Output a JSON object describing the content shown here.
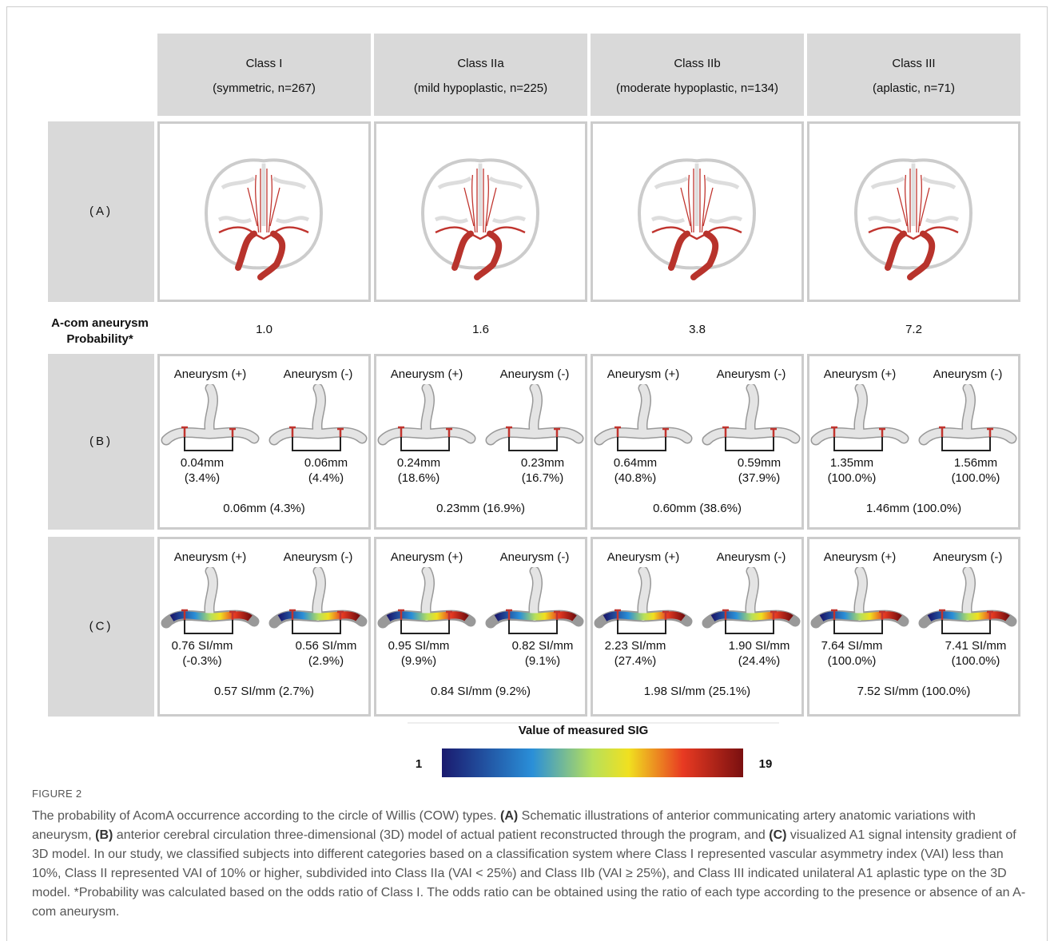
{
  "header": {
    "columns": [
      {
        "title": "Class I",
        "subtitle": "(symmetric, n=267)"
      },
      {
        "title": "Class IIa",
        "subtitle": "(mild hypoplastic, n=225)"
      },
      {
        "title": "Class IIb",
        "subtitle": "(moderate hypoplastic, n=134)"
      },
      {
        "title": "Class III",
        "subtitle": "(aplastic, n=71)"
      }
    ]
  },
  "rows": [
    {
      "label": "(A)"
    },
    {
      "label": "(B)"
    },
    {
      "label": "(C)"
    }
  ],
  "probability": {
    "label": [
      "A-com aneurysm",
      "Probability*"
    ],
    "values": [
      "1.0",
      "1.6",
      "3.8",
      "7.2"
    ]
  },
  "row_b": [
    {
      "pos_label": "Aneurysm (+)",
      "neg_label": "Aneurysm (-)",
      "pos_value": "0.04mm",
      "pos_pct": "(3.4%)",
      "neg_value": "0.06mm",
      "neg_pct": "(4.4%)",
      "summary": "0.06mm (4.3%)"
    },
    {
      "pos_label": "Aneurysm (+)",
      "neg_label": "Aneurysm (-)",
      "pos_value": "0.24mm",
      "pos_pct": "(18.6%)",
      "neg_value": "0.23mm",
      "neg_pct": "(16.7%)",
      "summary": "0.23mm (16.9%)"
    },
    {
      "pos_label": "Aneurysm (+)",
      "neg_label": "Aneurysm (-)",
      "pos_value": "0.64mm",
      "pos_pct": "(40.8%)",
      "neg_value": "0.59mm",
      "neg_pct": "(37.9%)",
      "summary": "0.60mm (38.6%)"
    },
    {
      "pos_label": "Aneurysm (+)",
      "neg_label": "Aneurysm (-)",
      "pos_value": "1.35mm",
      "pos_pct": "(100.0%)",
      "neg_value": "1.56mm",
      "neg_pct": "(100.0%)",
      "summary": "1.46mm (100.0%)"
    }
  ],
  "row_c": [
    {
      "pos_label": "Aneurysm (+)",
      "neg_label": "Aneurysm (-)",
      "pos_value": "0.76 SI/mm",
      "pos_pct": "(-0.3%)",
      "neg_value": "0.56 SI/mm",
      "neg_pct": "(2.9%)",
      "summary": "0.57 SI/mm (2.7%)"
    },
    {
      "pos_label": "Aneurysm (+)",
      "neg_label": "Aneurysm (-)",
      "pos_value": "0.95 SI/mm",
      "pos_pct": "(9.9%)",
      "neg_value": "0.82 SI/mm",
      "neg_pct": "(9.1%)",
      "summary": "0.84 SI/mm (9.2%)"
    },
    {
      "pos_label": "Aneurysm (+)",
      "neg_label": "Aneurysm (-)",
      "pos_value": "2.23 SI/mm",
      "pos_pct": "(27.4%)",
      "neg_value": "1.90 SI/mm",
      "neg_pct": "(24.4%)",
      "summary": "1.98 SI/mm (25.1%)"
    },
    {
      "pos_label": "Aneurysm (+)",
      "neg_label": "Aneurysm (-)",
      "pos_value": "7.64 SI/mm",
      "pos_pct": "(100.0%)",
      "neg_value": "7.41 SI/mm",
      "neg_pct": "(100.0%)",
      "summary": "7.52 SI/mm (100.0%)"
    }
  ],
  "colorbar": {
    "title": "Value of measured SIG",
    "min": "1",
    "max": "19"
  },
  "caption": {
    "label": "FIGURE 2",
    "segments": [
      "The probability of AcomA occurrence according to the circle of Willis (COW) types. ",
      "(A)",
      " Schematic illustrations of anterior communicating artery anatomic variations with aneurysm, ",
      "(B)",
      " anterior cerebral circulation three-dimensional (3D) model of actual patient reconstructed through the program, and ",
      "(C)",
      " visualized A1 signal intensity gradient of 3D model. In our study, we classified subjects into different categories based on a classification system where Class I represented vascular asymmetry index (VAI) less than 10%, Class II represented VAI of 10% or higher, subdivided into Class IIa (VAI < 25%) and Class IIb (VAI ≥ 25%), and Class III indicated unilateral A1 aplastic type on the 3D model. *Probability was calculated based on the odds ratio of Class I. The odds ratio can be obtained using the ratio of each type according to the presence or absence of an A-com aneurysm."
    ]
  }
}
